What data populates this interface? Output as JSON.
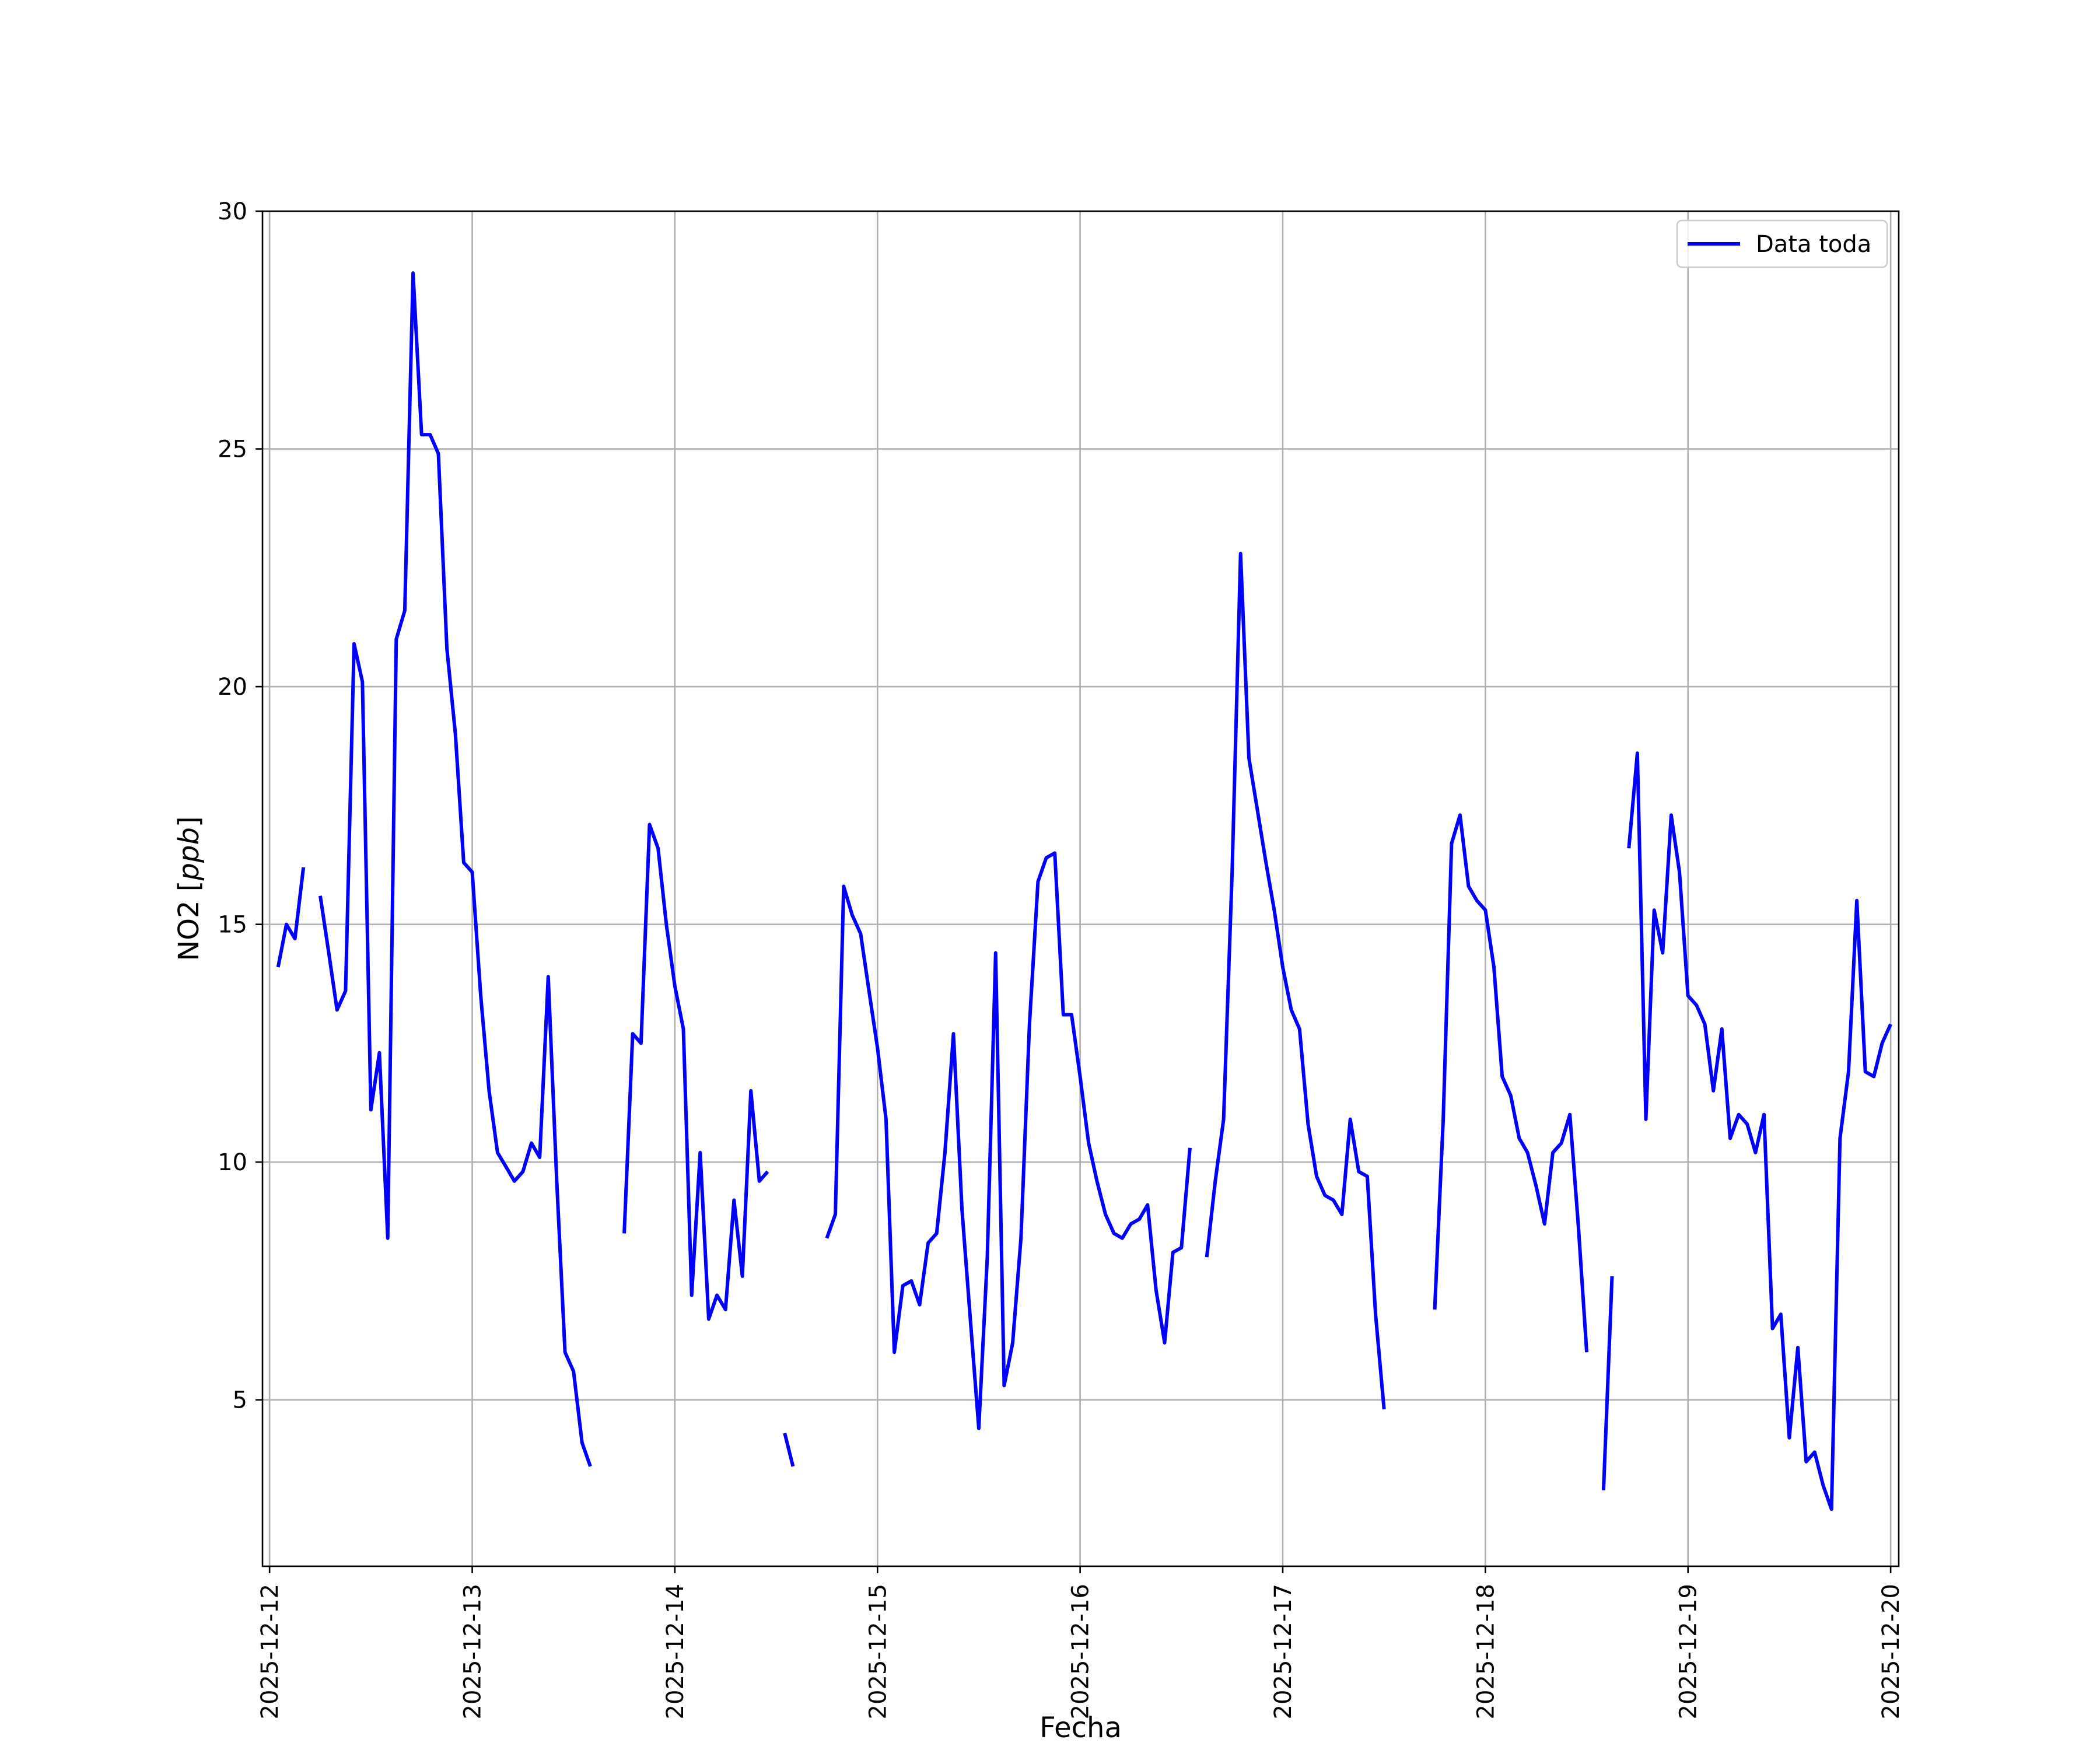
{
  "chart_data": {
    "type": "line",
    "title": "",
    "xlabel": "Fecha",
    "ylabel_text": "NO2 [",
    "ylabel_unit": "ppb",
    "ylabel_close": "]",
    "xlim": [
      -0.035,
      8.04
    ],
    "ylim": [
      1.5,
      30
    ],
    "grid": true,
    "legend": {
      "position": "top-right",
      "entries": [
        "Data toda"
      ]
    },
    "x_ticks": [
      {
        "x": 0,
        "label": "2025-12-12"
      },
      {
        "x": 1,
        "label": "2025-12-13"
      },
      {
        "x": 2,
        "label": "2025-12-14"
      },
      {
        "x": 3,
        "label": "2025-12-15"
      },
      {
        "x": 4,
        "label": "2025-12-16"
      },
      {
        "x": 5,
        "label": "2025-12-17"
      },
      {
        "x": 6,
        "label": "2025-12-18"
      },
      {
        "x": 7,
        "label": "2025-12-19"
      },
      {
        "x": 8,
        "label": "2025-12-20"
      }
    ],
    "y_ticks": [
      {
        "y": 5,
        "label": "5"
      },
      {
        "y": 10,
        "label": "10"
      },
      {
        "y": 15,
        "label": "15"
      },
      {
        "y": 20,
        "label": "20"
      },
      {
        "y": 25,
        "label": "25"
      },
      {
        "y": 30,
        "label": "30"
      }
    ],
    "series": [
      {
        "name": "Data toda",
        "color": "#0000ff",
        "segments": [
          [
            [
              0.042,
              14.1
            ],
            [
              0.083,
              15.0
            ],
            [
              0.125,
              14.7
            ],
            [
              0.167,
              16.2
            ]
          ],
          [
            [
              0.25,
              15.6
            ],
            [
              0.292,
              14.4
            ],
            [
              0.333,
              13.2
            ],
            [
              0.375,
              13.6
            ],
            [
              0.417,
              20.9
            ],
            [
              0.458,
              20.1
            ],
            [
              0.5,
              11.1
            ],
            [
              0.542,
              12.3
            ],
            [
              0.583,
              8.4
            ],
            [
              0.625,
              21.0
            ],
            [
              0.667,
              21.6
            ],
            [
              0.708,
              28.7
            ],
            [
              0.75,
              25.3
            ],
            [
              0.792,
              25.3
            ],
            [
              0.833,
              24.9
            ],
            [
              0.875,
              20.8
            ],
            [
              0.917,
              19.0
            ],
            [
              0.958,
              16.3
            ],
            [
              1.0,
              16.1
            ],
            [
              1.042,
              13.5
            ],
            [
              1.083,
              11.5
            ],
            [
              1.125,
              10.2
            ],
            [
              1.167,
              9.9
            ],
            [
              1.208,
              9.6
            ],
            [
              1.25,
              9.8
            ],
            [
              1.292,
              10.4
            ],
            [
              1.333,
              10.1
            ],
            [
              1.375,
              13.9
            ],
            [
              1.417,
              9.6
            ],
            [
              1.458,
              6.0
            ],
            [
              1.5,
              5.6
            ],
            [
              1.542,
              4.1
            ],
            [
              1.583,
              3.6
            ]
          ],
          [
            [
              1.75,
              8.5
            ],
            [
              1.792,
              12.7
            ],
            [
              1.833,
              12.5
            ],
            [
              1.875,
              17.1
            ],
            [
              1.917,
              16.6
            ],
            [
              1.958,
              15.0
            ],
            [
              2.0,
              13.7
            ],
            [
              2.042,
              12.8
            ],
            [
              2.083,
              7.2
            ],
            [
              2.125,
              10.2
            ],
            [
              2.167,
              6.7
            ],
            [
              2.208,
              7.2
            ],
            [
              2.25,
              6.9
            ],
            [
              2.292,
              9.2
            ],
            [
              2.333,
              7.6
            ],
            [
              2.375,
              11.5
            ],
            [
              2.417,
              9.6
            ],
            [
              2.458,
              9.8
            ]
          ],
          [
            [
              2.542,
              4.3
            ],
            [
              2.583,
              3.6
            ]
          ],
          [
            [
              2.75,
              8.4
            ],
            [
              2.792,
              8.9
            ],
            [
              2.833,
              15.8
            ],
            [
              2.875,
              15.2
            ],
            [
              2.917,
              14.8
            ],
            [
              2.958,
              13.6
            ],
            [
              3.0,
              12.4
            ],
            [
              3.042,
              10.9
            ],
            [
              3.083,
              6.0
            ],
            [
              3.125,
              7.4
            ],
            [
              3.167,
              7.5
            ],
            [
              3.208,
              7.0
            ],
            [
              3.25,
              8.3
            ],
            [
              3.292,
              8.5
            ],
            [
              3.333,
              10.2
            ],
            [
              3.375,
              12.7
            ],
            [
              3.417,
              9.0
            ],
            [
              3.458,
              6.7
            ],
            [
              3.5,
              4.4
            ],
            [
              3.542,
              8.0
            ],
            [
              3.583,
              14.4
            ],
            [
              3.625,
              5.3
            ],
            [
              3.667,
              6.2
            ],
            [
              3.708,
              8.4
            ],
            [
              3.75,
              12.9
            ],
            [
              3.792,
              15.9
            ],
            [
              3.833,
              16.4
            ],
            [
              3.875,
              16.5
            ],
            [
              3.917,
              13.1
            ],
            [
              3.958,
              13.1
            ],
            [
              4.0,
              11.8
            ],
            [
              4.042,
              10.4
            ],
            [
              4.083,
              9.6
            ],
            [
              4.125,
              8.9
            ],
            [
              4.167,
              8.5
            ],
            [
              4.208,
              8.4
            ],
            [
              4.25,
              8.7
            ],
            [
              4.292,
              8.8
            ],
            [
              4.333,
              9.1
            ],
            [
              4.375,
              7.3
            ],
            [
              4.417,
              6.2
            ],
            [
              4.458,
              8.1
            ],
            [
              4.5,
              8.2
            ],
            [
              4.542,
              10.3
            ]
          ],
          [
            [
              4.625,
              8.0
            ],
            [
              4.667,
              9.6
            ],
            [
              4.708,
              10.9
            ],
            [
              4.75,
              16.1
            ],
            [
              4.792,
              22.8
            ],
            [
              4.833,
              18.5
            ],
            [
              4.875,
              17.4
            ],
            [
              4.917,
              16.3
            ],
            [
              4.958,
              15.3
            ],
            [
              5.0,
              14.1
            ],
            [
              5.042,
              13.2
            ],
            [
              5.083,
              12.8
            ],
            [
              5.125,
              10.8
            ],
            [
              5.167,
              9.7
            ],
            [
              5.208,
              9.3
            ],
            [
              5.25,
              9.2
            ],
            [
              5.292,
              8.9
            ],
            [
              5.333,
              10.9
            ],
            [
              5.375,
              9.8
            ],
            [
              5.417,
              9.7
            ],
            [
              5.458,
              6.8
            ],
            [
              5.5,
              4.8
            ]
          ],
          [
            [
              5.75,
              6.9
            ],
            [
              5.792,
              10.9
            ],
            [
              5.833,
              16.7
            ],
            [
              5.875,
              17.3
            ],
            [
              5.917,
              15.8
            ],
            [
              5.958,
              15.5
            ],
            [
              6.0,
              15.3
            ],
            [
              6.042,
              14.1
            ],
            [
              6.083,
              11.8
            ],
            [
              6.125,
              11.4
            ],
            [
              6.167,
              10.5
            ],
            [
              6.208,
              10.2
            ],
            [
              6.25,
              9.5
            ],
            [
              6.292,
              8.7
            ],
            [
              6.333,
              10.2
            ],
            [
              6.375,
              10.4
            ],
            [
              6.417,
              11.0
            ],
            [
              6.458,
              8.7
            ],
            [
              6.5,
              6.0
            ]
          ],
          [
            [
              6.583,
              3.1
            ],
            [
              6.625,
              7.6
            ]
          ],
          [
            [
              6.708,
              16.6
            ],
            [
              6.75,
              18.6
            ],
            [
              6.792,
              10.9
            ],
            [
              6.833,
              15.3
            ],
            [
              6.875,
              14.4
            ],
            [
              6.917,
              17.3
            ],
            [
              6.958,
              16.1
            ],
            [
              7.0,
              13.5
            ],
            [
              7.042,
              13.3
            ],
            [
              7.083,
              12.9
            ],
            [
              7.125,
              11.5
            ],
            [
              7.167,
              12.8
            ],
            [
              7.208,
              10.5
            ],
            [
              7.25,
              11.0
            ],
            [
              7.292,
              10.8
            ],
            [
              7.333,
              10.2
            ],
            [
              7.375,
              11.0
            ],
            [
              7.417,
              6.5
            ],
            [
              7.458,
              6.8
            ],
            [
              7.5,
              4.2
            ],
            [
              7.542,
              6.1
            ],
            [
              7.583,
              3.7
            ],
            [
              7.625,
              3.9
            ],
            [
              7.667,
              3.2
            ],
            [
              7.708,
              2.7
            ],
            [
              7.75,
              10.5
            ],
            [
              7.792,
              11.9
            ],
            [
              7.833,
              15.5
            ],
            [
              7.875,
              11.9
            ],
            [
              7.917,
              11.8
            ],
            [
              7.958,
              12.5
            ],
            [
              8.0,
              12.9
            ]
          ]
        ]
      }
    ]
  }
}
